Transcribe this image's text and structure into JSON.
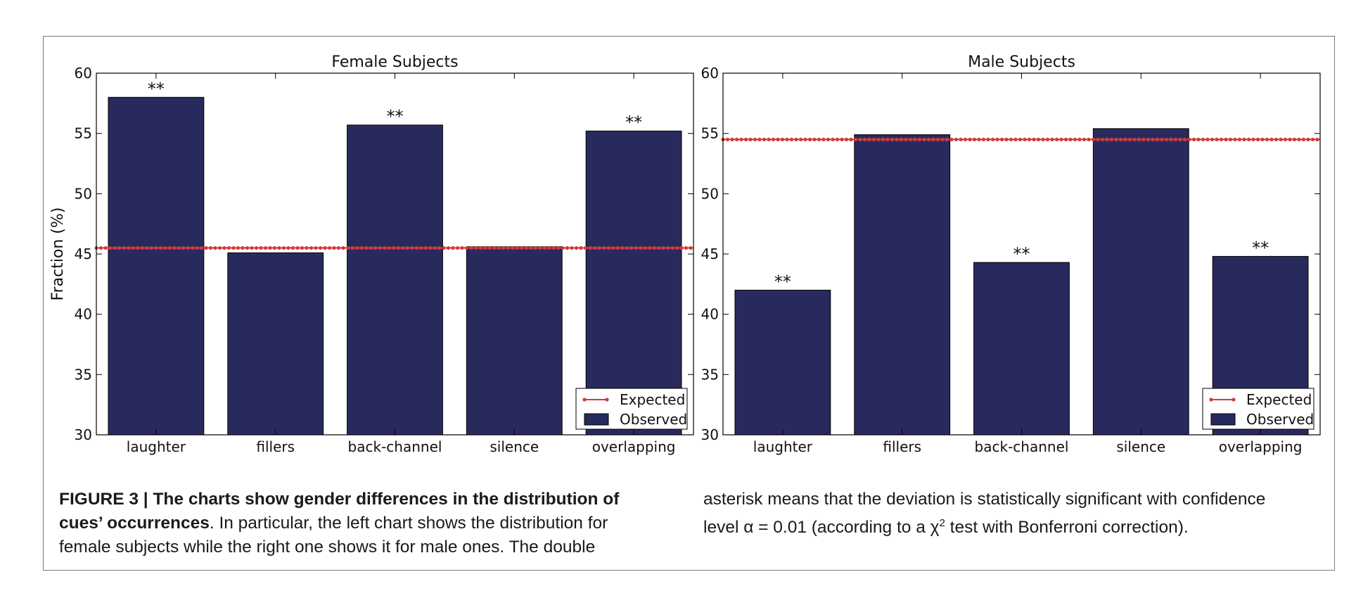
{
  "chart_data": [
    {
      "type": "bar",
      "title": "Female Subjects",
      "ylabel": "Fraction (%)",
      "xlabel": "",
      "categories": [
        "laughter",
        "fillers",
        "back-channel",
        "silence",
        "overlapping"
      ],
      "series": [
        {
          "name": "Observed",
          "values": [
            58.0,
            45.1,
            55.7,
            45.6,
            55.2
          ]
        }
      ],
      "expected": {
        "name": "Expected",
        "value": 45.5
      },
      "annotations": [
        "**",
        "",
        "**",
        "",
        "**"
      ],
      "ylim": [
        30,
        60
      ],
      "yticks": [
        30,
        35,
        40,
        45,
        50,
        55,
        60
      ],
      "legend": {
        "placement": "lower-right",
        "entries": [
          "Expected",
          "Observed"
        ]
      },
      "colors": {
        "bar": "#282a5e",
        "expected": "#d23a3a"
      }
    },
    {
      "type": "bar",
      "title": "Male Subjects",
      "ylabel": "",
      "xlabel": "",
      "categories": [
        "laughter",
        "fillers",
        "back-channel",
        "silence",
        "overlapping"
      ],
      "series": [
        {
          "name": "Observed",
          "values": [
            42.0,
            54.9,
            44.3,
            55.4,
            44.8
          ]
        }
      ],
      "expected": {
        "name": "Expected",
        "value": 54.5
      },
      "annotations": [
        "**",
        "",
        "**",
        "",
        "**"
      ],
      "ylim": [
        30,
        60
      ],
      "yticks": [
        30,
        35,
        40,
        45,
        50,
        55,
        60
      ],
      "legend": {
        "placement": "lower-right",
        "entries": [
          "Expected",
          "Observed"
        ]
      },
      "colors": {
        "bar": "#282a5e",
        "expected": "#d23a3a"
      }
    }
  ],
  "caption": {
    "label": "FIGURE 3 | ",
    "bold": "The charts show gender differences in the distribution of cues’ occurrences",
    "rest": ". In particular, the left chart shows the distribution for female subjects while the right one shows it for male ones. The double asterisk means that the deviation is statistically significant with confidence level α = 0.01 (according to a χ",
    "sup": "2",
    "end": " test with Bonferroni correction)."
  }
}
